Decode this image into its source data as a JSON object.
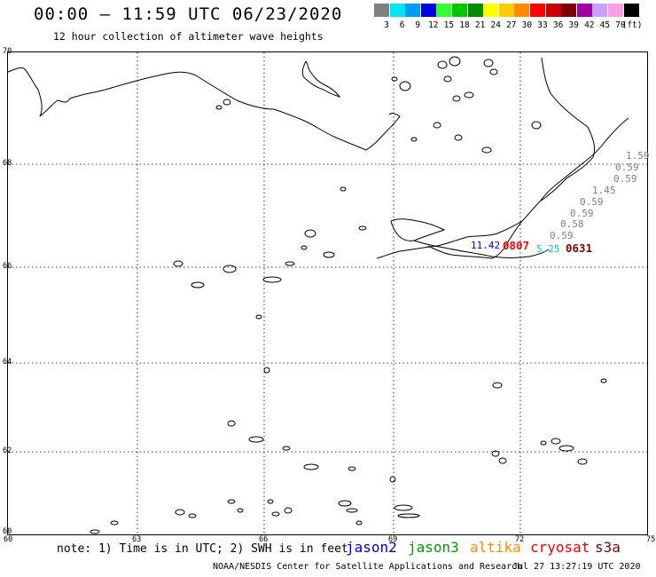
{
  "header": {
    "title": "00:00 – 11:59 UTC 06/23/2020",
    "subtitle": "12 hour collection of altimeter wave heights"
  },
  "color_scale": {
    "unit": "(ft)",
    "swatches": [
      {
        "label": "3",
        "color": "#808080"
      },
      {
        "label": "6",
        "color": "#00e5f0"
      },
      {
        "label": "9",
        "color": "#009bf5"
      },
      {
        "label": "12",
        "color": "#0000e0"
      },
      {
        "label": "15",
        "color": "#33ff33"
      },
      {
        "label": "18",
        "color": "#00c800"
      },
      {
        "label": "21",
        "color": "#008c00"
      },
      {
        "label": "24",
        "color": "#ffff00"
      },
      {
        "label": "27",
        "color": "#ffcc00"
      },
      {
        "label": "30",
        "color": "#ff8c00"
      },
      {
        "label": "33",
        "color": "#ff0000"
      },
      {
        "label": "36",
        "color": "#c80000"
      },
      {
        "label": "39",
        "color": "#800000"
      },
      {
        "label": "42",
        "color": "#a000a0"
      },
      {
        "label": "45",
        "color": "#c8a0ff"
      },
      {
        "label": "70",
        "color": "#ff9ee8"
      },
      {
        "label": "",
        "color": "#000000"
      }
    ]
  },
  "map": {
    "lat_labels": [
      "70",
      "68",
      "66",
      "64",
      "62",
      "60"
    ],
    "lon_labels": [
      "60",
      "63",
      "66",
      "69",
      "72",
      "75"
    ],
    "observations": [
      {
        "text": "1.59",
        "color": "#808080"
      },
      {
        "text": "0.59",
        "color": "#808080"
      },
      {
        "text": "0.59",
        "color": "#808080"
      },
      {
        "text": "1.45",
        "color": "#808080"
      },
      {
        "text": "0.59",
        "color": "#808080"
      },
      {
        "text": "0.59",
        "color": "#808080"
      },
      {
        "text": "0.58",
        "color": "#808080"
      },
      {
        "text": "0.59",
        "color": "#808080"
      },
      {
        "text": "11.42",
        "color": "#0000cc"
      },
      {
        "text": "0807",
        "color": "#ff0000"
      },
      {
        "text": "5.25",
        "color": "#00c8d8"
      },
      {
        "text": "0631",
        "color": "#800000"
      }
    ]
  },
  "footer": {
    "note": "note: 1) Time is in UTC; 2) SWH is in feet",
    "satellites": [
      {
        "name": "jason2",
        "color": "#0000cc"
      },
      {
        "name": "jason3",
        "color": "#009900"
      },
      {
        "name": "altika",
        "color": "#ff8c00"
      },
      {
        "name": "cryosat",
        "color": "#ee0000"
      },
      {
        "name": "s3a",
        "color": "#800000"
      }
    ],
    "credit": "NOAA/NESDIS Center for Satellite Applications and Research",
    "generated": "Jul 27 13:27:19 UTC 2020"
  }
}
